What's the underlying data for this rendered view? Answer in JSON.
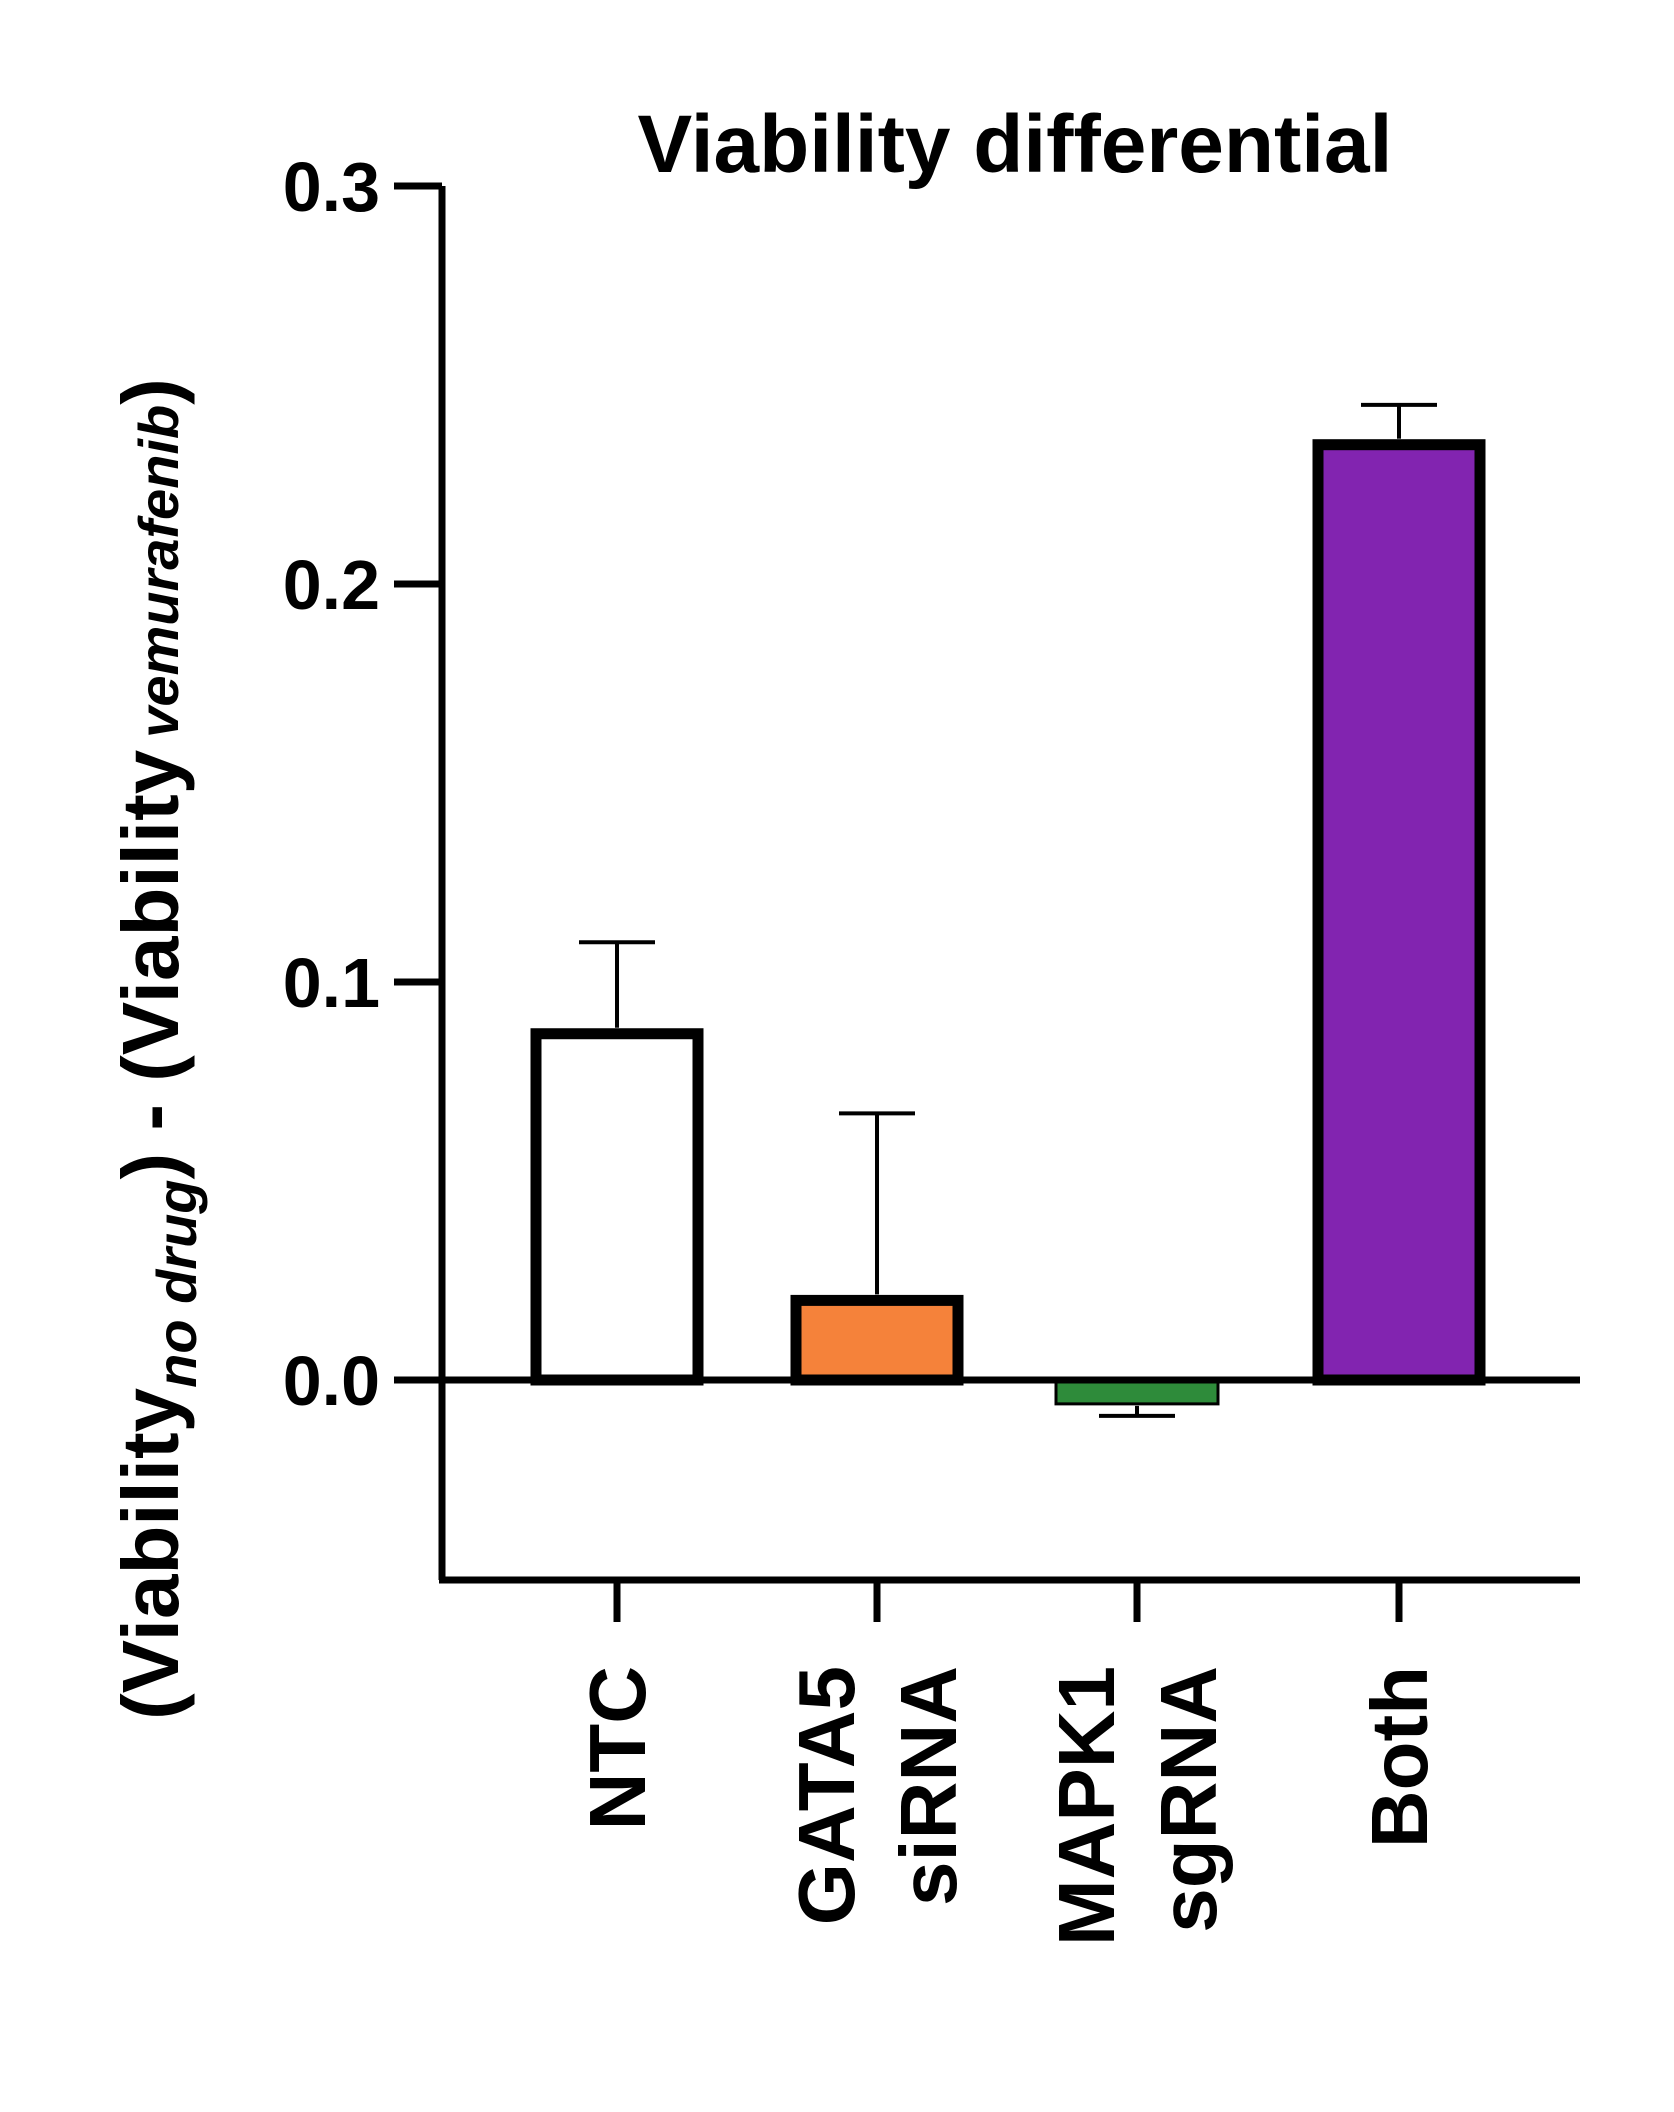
{
  "chart_data": {
    "type": "bar",
    "title": "Viability differential",
    "ylabel": {
      "open": "(Viability",
      "sub1": "no drug",
      "middle": ") - (Viability",
      "sub2": "vemurafenib",
      "close": ")"
    },
    "xlabel": "",
    "ylim": [
      -0.05,
      0.3
    ],
    "yticks": [
      0.0,
      0.1,
      0.2,
      0.3
    ],
    "ytick_labels": [
      "0.0",
      "0.1",
      "0.2",
      "0.3"
    ],
    "categories": [
      "NTC",
      "GATA5 siRNA",
      "MAPK1 sgRNA",
      "Both"
    ],
    "category_lines": [
      [
        "NTC"
      ],
      [
        "GATA5",
        "siRNA"
      ],
      [
        "MAPK1",
        "sgRNA"
      ],
      [
        "Both"
      ]
    ],
    "values": [
      0.087,
      0.02,
      -0.006,
      0.235
    ],
    "error_upper": [
      0.11,
      0.067,
      -0.009,
      0.245
    ],
    "colors": [
      "#ffffff",
      "#f5823a",
      "#2e8b3a",
      "#8224b0"
    ],
    "grid": false,
    "legend": "none"
  }
}
